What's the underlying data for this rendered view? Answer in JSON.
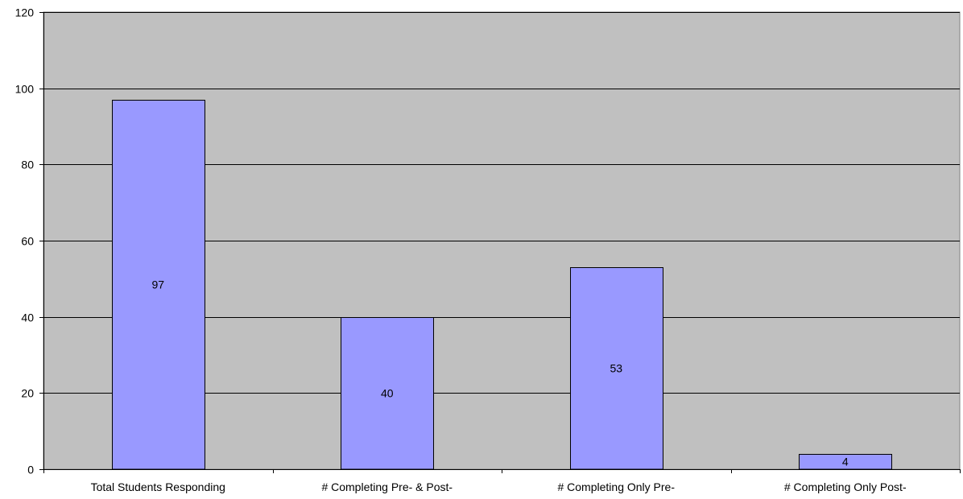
{
  "chart_data": {
    "type": "bar",
    "categories": [
      "Total Students Responding",
      "# Completing Pre- & Post-",
      "# Completing Only Pre-",
      "# Completing Only Post-"
    ],
    "values": [
      97,
      40,
      53,
      4
    ],
    "data_labels": [
      "97",
      "40",
      "53",
      "4"
    ],
    "y_ticks": [
      "0",
      "20",
      "40",
      "60",
      "80",
      "100",
      "120"
    ],
    "ylim": [
      0,
      120
    ],
    "title": "",
    "xlabel": "",
    "ylabel": "",
    "grid": true,
    "legend": "none",
    "colors": {
      "bar_fill": "#9999ff",
      "bar_stroke": "#000000",
      "plot_background": "#c0c0c0",
      "gridline": "#000000"
    }
  }
}
